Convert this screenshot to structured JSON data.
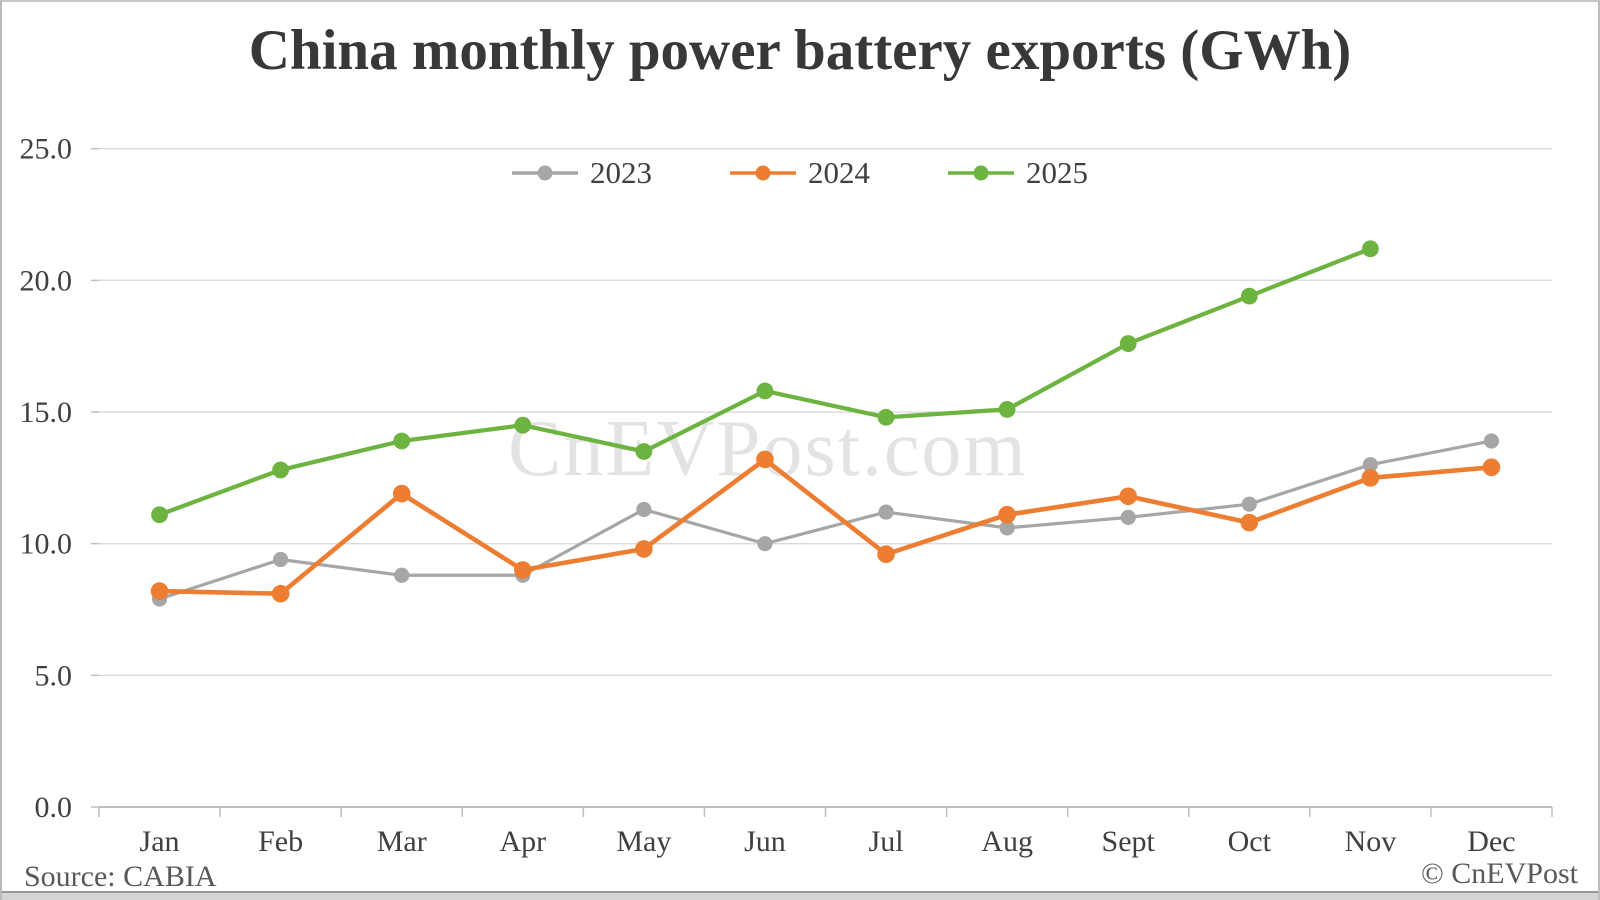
{
  "header": {
    "title": "China monthly power battery exports (GWh)"
  },
  "watermark": {
    "text": "CnEVPost.com"
  },
  "footer": {
    "source": "Source: CABIA",
    "copyright": "© CnEVPost"
  },
  "colors": {
    "series_2023": "#a6a6a6",
    "series_2024": "#ed7d31",
    "series_2025": "#6cb33f",
    "gridline": "#d9d9d9",
    "axis_line": "#bfbfbf",
    "tick": "#bfbfbf",
    "axis_text": "#404040",
    "footer_text": "#595959",
    "watermark_text": "#e3e3e3"
  },
  "chart_data": {
    "type": "line",
    "title": "China monthly power battery exports (GWh)",
    "xlabel": "",
    "ylabel": "",
    "categories": [
      "Jan",
      "Feb",
      "Mar",
      "Apr",
      "May",
      "Jun",
      "Jul",
      "Aug",
      "Sept",
      "Oct",
      "Nov",
      "Dec"
    ],
    "ylim": [
      0,
      25
    ],
    "yticks": [
      0,
      5,
      10,
      15,
      20,
      25
    ],
    "ytick_labels": [
      "0.0",
      "5.0",
      "10.0",
      "15.0",
      "20.0",
      "25.0"
    ],
    "grid": true,
    "legend_position": "top-center",
    "series": [
      {
        "name": "2023",
        "color": "#a6a6a6",
        "values": [
          7.9,
          9.4,
          8.8,
          8.8,
          11.3,
          10.0,
          11.2,
          10.6,
          11.0,
          11.5,
          13.0,
          13.9
        ]
      },
      {
        "name": "2024",
        "color": "#ed7d31",
        "values": [
          8.2,
          8.1,
          11.9,
          9.0,
          9.8,
          13.2,
          9.6,
          11.1,
          11.8,
          10.8,
          12.5,
          12.9
        ]
      },
      {
        "name": "2025",
        "color": "#6cb33f",
        "values": [
          11.1,
          12.8,
          13.9,
          14.5,
          13.5,
          15.8,
          14.8,
          15.1,
          17.6,
          19.4,
          21.2,
          null
        ]
      }
    ]
  }
}
